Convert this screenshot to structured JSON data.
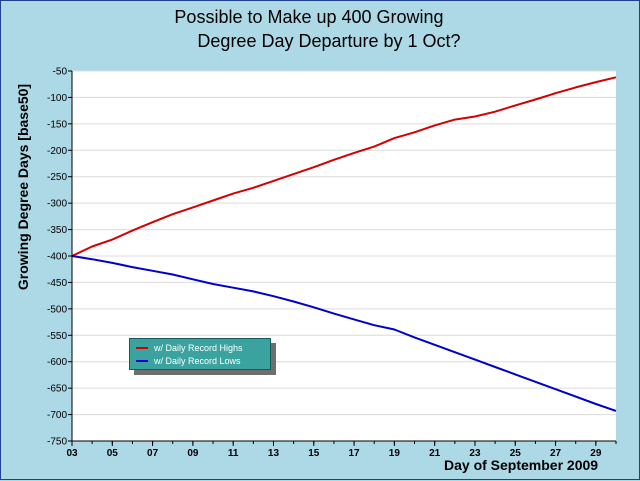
{
  "chart_data": {
    "type": "line",
    "title_lines": [
      "Possible to Make up 400 Growing",
      "Degree Day Departure by 1 Oct?"
    ],
    "xlabel": "Day of September 2009",
    "ylabel": "Growing Degree Days [base50]",
    "x_ticks": [
      "03",
      "05",
      "07",
      "09",
      "11",
      "13",
      "15",
      "17",
      "19",
      "21",
      "23",
      "25",
      "27",
      "29"
    ],
    "xlim": [
      3,
      30
    ],
    "y_ticks": [
      -50,
      -100,
      -150,
      -200,
      -250,
      -300,
      -350,
      -400,
      -450,
      -500,
      -550,
      -600,
      -650,
      -700,
      -750
    ],
    "ylim": [
      -750,
      -50
    ],
    "grid": true,
    "legend_position": "lower-left",
    "x": [
      3,
      4,
      5,
      6,
      7,
      8,
      9,
      10,
      11,
      12,
      13,
      14,
      15,
      16,
      17,
      18,
      19,
      20,
      21,
      22,
      23,
      24,
      25,
      26,
      27,
      28,
      29,
      30
    ],
    "series": [
      {
        "name": "w/ Daily Record Highs",
        "color": "#d40000",
        "values": [
          -400,
          -382,
          -369,
          -352,
          -336,
          -321,
          -308,
          -295,
          -282,
          -271,
          -258,
          -245,
          -232,
          -218,
          -205,
          -193,
          -177,
          -166,
          -153,
          -142,
          -136,
          -127,
          -115,
          -104,
          -92,
          -81,
          -71,
          -62
        ]
      },
      {
        "name": "w/ Daily Record Lows",
        "color": "#0000cc",
        "values": [
          -400,
          -406,
          -413,
          -421,
          -428,
          -435,
          -444,
          -453,
          -460,
          -467,
          -476,
          -486,
          -497,
          -509,
          -520,
          -531,
          -539,
          -554,
          -568,
          -582,
          -596,
          -610,
          -624,
          -638,
          -652,
          -666,
          -680,
          -693
        ]
      }
    ]
  }
}
